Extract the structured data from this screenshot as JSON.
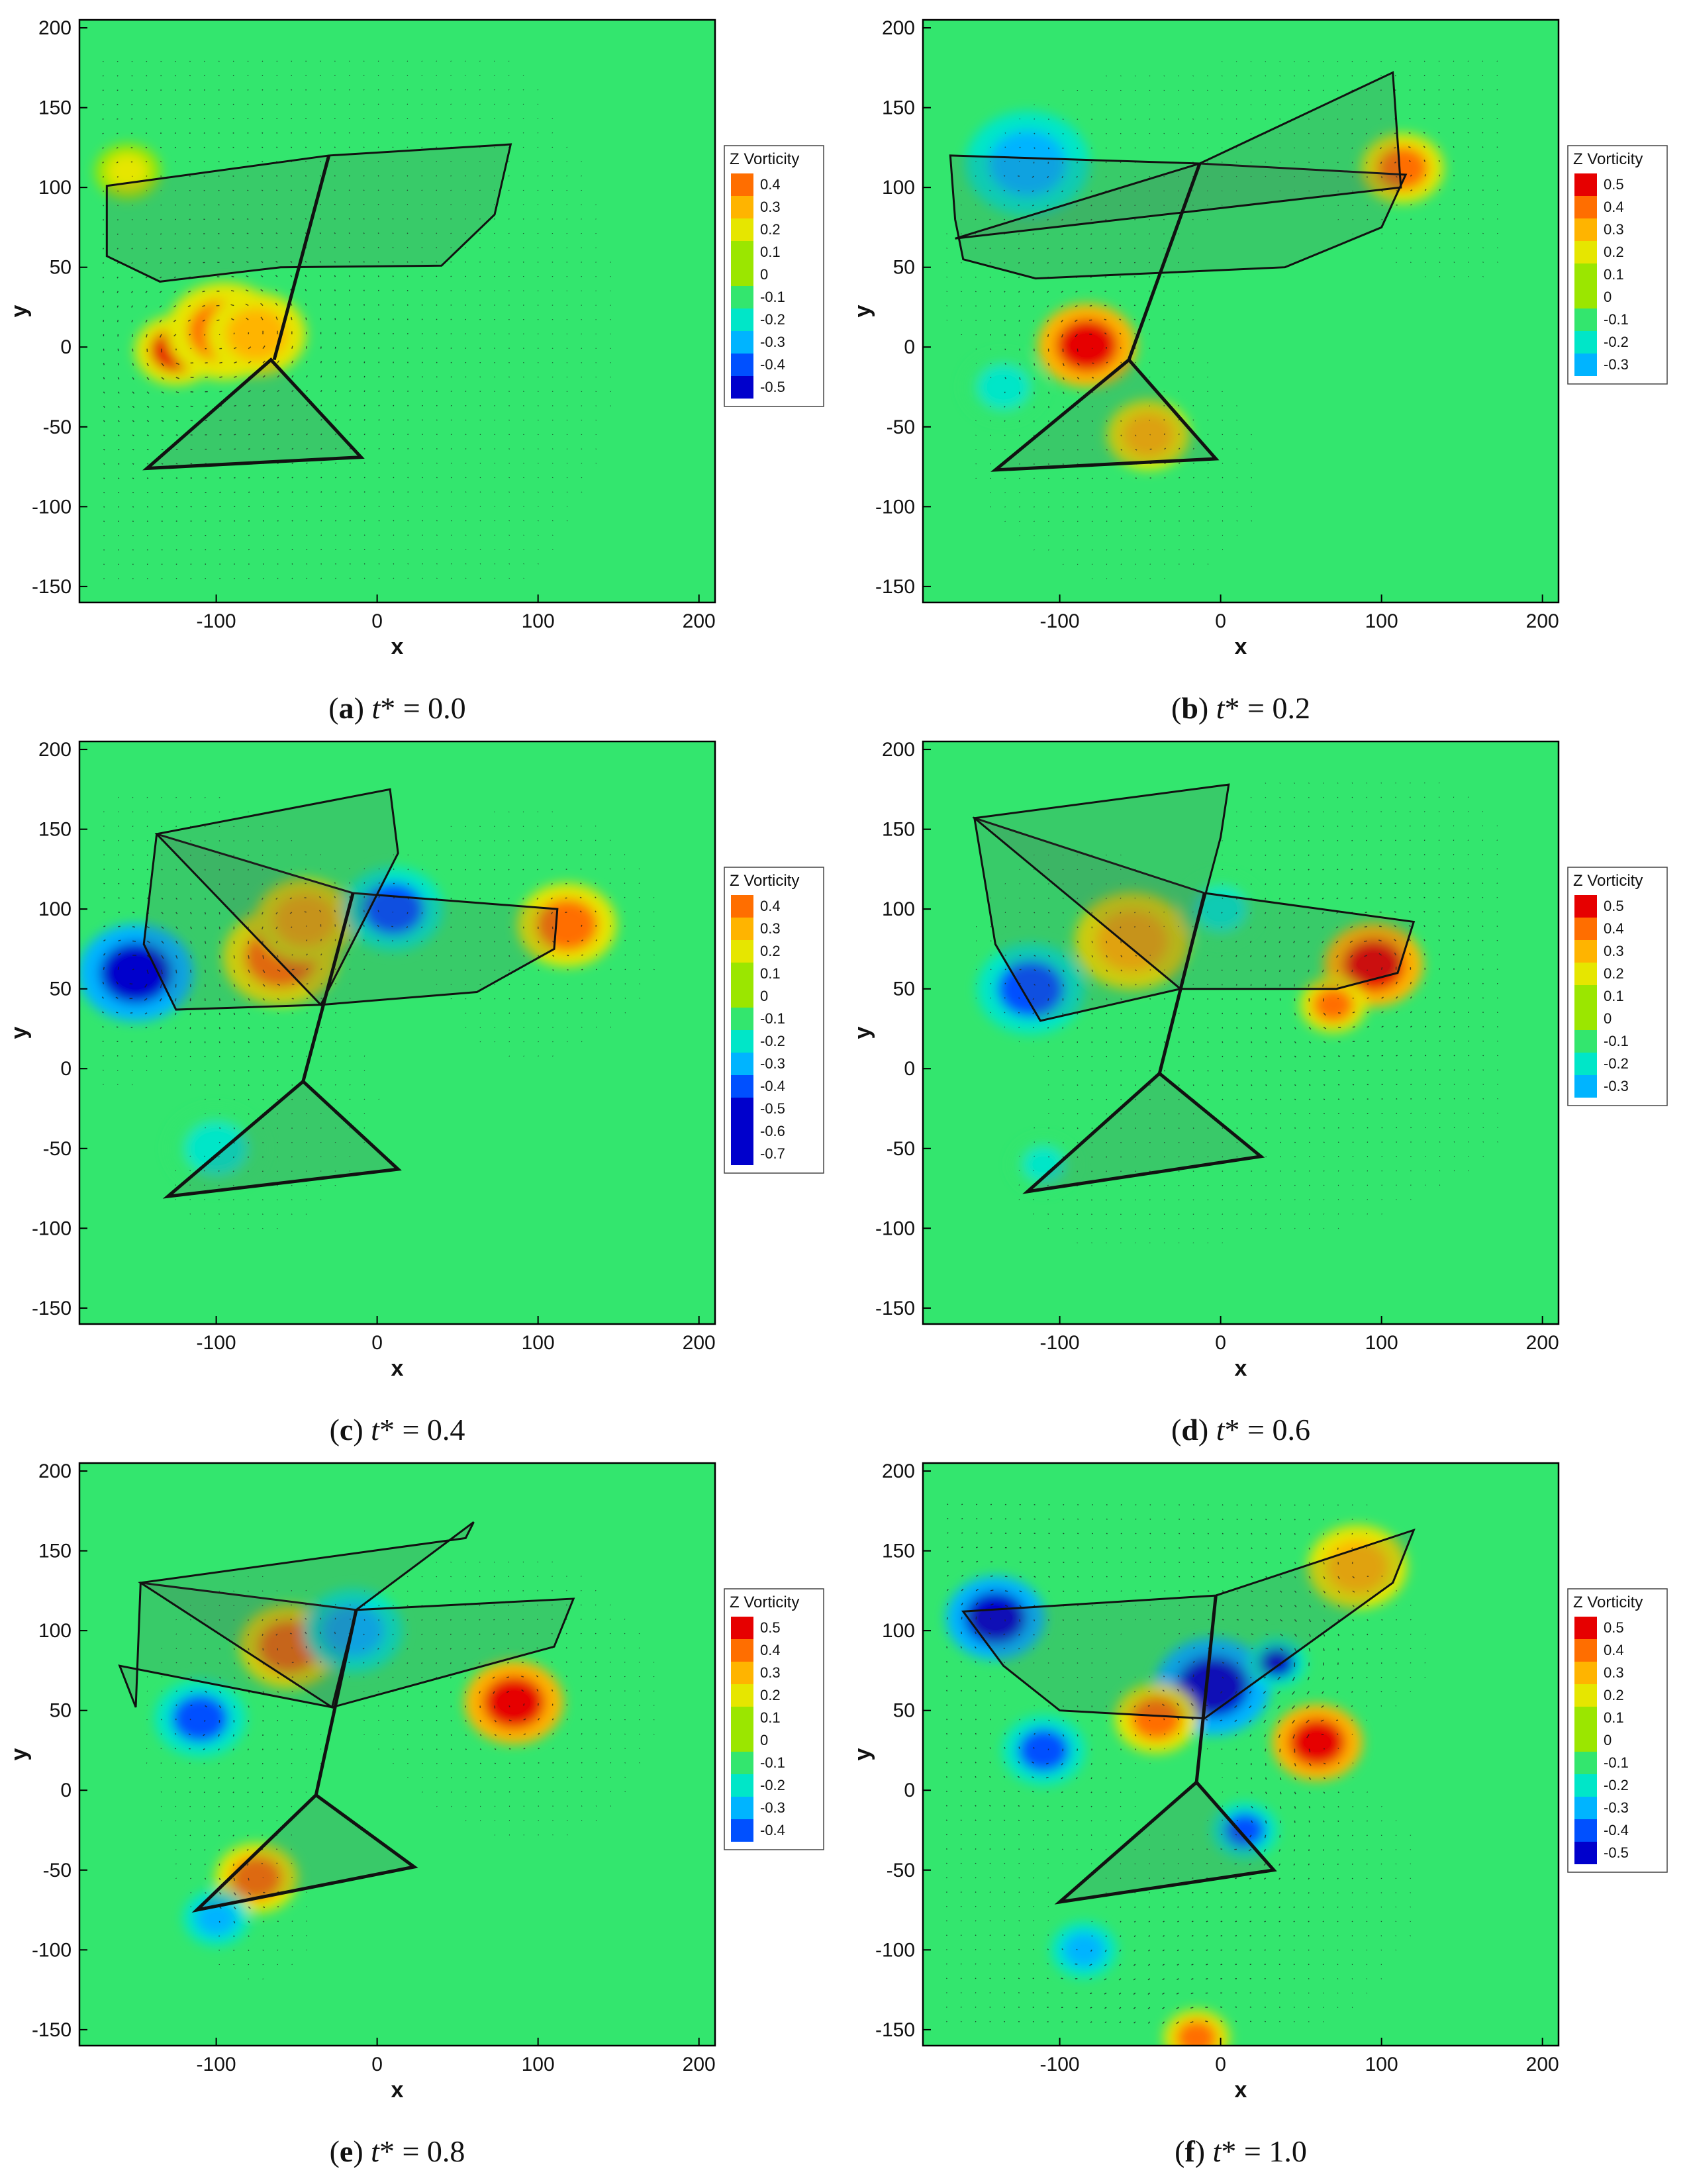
{
  "figure": {
    "colorbar_colors": [
      "#0000cc",
      "#0050ff",
      "#00b4ff",
      "#00e6c8",
      "#33e66e",
      "#9be600",
      "#e6e600",
      "#ffb400",
      "#ff6e00",
      "#e60000"
    ],
    "background_color": "#33e66e"
  },
  "chart_data": [
    {
      "panel": "a",
      "caption_letter": "a",
      "caption_rest": " = 0.0",
      "type": "heatmap",
      "xlabel": "x",
      "ylabel": "y",
      "xlim": [
        -185,
        210
      ],
      "ylim": [
        -160,
        205
      ],
      "xticks": [
        "-100",
        "0",
        "100",
        "200"
      ],
      "yticks": [
        "-150",
        "-100",
        "-50",
        "0",
        "50",
        "100",
        "150",
        "200"
      ],
      "legend_title": "Z Vorticity",
      "legend_levels": [
        "0.4",
        "0.3",
        "0.2",
        "0.1",
        "0",
        "-0.1",
        "-0.2",
        "-0.3",
        "-0.4",
        "-0.5"
      ],
      "wing_polygons": [
        [
          [
            -168,
            101
          ],
          [
            -30,
            120
          ],
          [
            83,
            127
          ],
          [
            73,
            83
          ],
          [
            40,
            51
          ],
          [
            -60,
            50
          ],
          [
            -135,
            41
          ],
          [
            -168,
            57
          ]
        ]
      ],
      "tail_polygon": [
        [
          -66,
          -8
        ],
        [
          -143,
          -76
        ],
        [
          -10,
          -69
        ]
      ],
      "body_line": [
        [
          -30,
          120
        ],
        [
          -64,
          -8
        ]
      ],
      "vortices": [
        {
          "x": -125,
          "y": -2,
          "s": 0.45,
          "r": 10
        },
        {
          "x": -95,
          "y": 10,
          "s": 0.38,
          "r": 14
        },
        {
          "x": -75,
          "y": 8,
          "s": 0.28,
          "r": 12
        },
        {
          "x": -155,
          "y": 110,
          "s": 0.15,
          "r": 8
        }
      ]
    },
    {
      "panel": "b",
      "caption_letter": "b",
      "caption_rest": " = 0.2",
      "type": "heatmap",
      "xlabel": "x",
      "ylabel": "y",
      "xlim": [
        -185,
        210
      ],
      "ylim": [
        -160,
        205
      ],
      "xticks": [
        "-100",
        "0",
        "100",
        "200"
      ],
      "yticks": [
        "-150",
        "-100",
        "-50",
        "0",
        "50",
        "100",
        "150",
        "200"
      ],
      "legend_title": "Z Vorticity",
      "legend_levels": [
        "0.5",
        "0.4",
        "0.3",
        "0.2",
        "0.1",
        "0",
        "-0.1",
        "-0.2",
        "-0.3"
      ],
      "wing_polygons": [
        [
          [
            -168,
            120
          ],
          [
            -13,
            115
          ],
          [
            115,
            108
          ],
          [
            100,
            75
          ],
          [
            40,
            50
          ],
          [
            -115,
            43
          ],
          [
            -160,
            55
          ],
          [
            -165,
            80
          ]
        ],
        [
          [
            -165,
            68
          ],
          [
            -13,
            115
          ],
          [
            107,
            172
          ],
          [
            112,
            100
          ]
        ]
      ],
      "tail_polygon": [
        [
          -57,
          -8
        ],
        [
          -140,
          -77
        ],
        [
          -3,
          -70
        ]
      ],
      "body_line": [
        [
          -13,
          115
        ],
        [
          -57,
          -8
        ]
      ],
      "vortices": [
        {
          "x": -83,
          "y": 1,
          "s": 0.5,
          "r": 12
        },
        {
          "x": 113,
          "y": 112,
          "s": 0.4,
          "r": 10
        },
        {
          "x": -120,
          "y": 115,
          "s": -0.3,
          "r": 15
        },
        {
          "x": -135,
          "y": -25,
          "s": -0.2,
          "r": 10
        },
        {
          "x": -45,
          "y": -55,
          "s": 0.25,
          "r": 10
        }
      ]
    },
    {
      "panel": "c",
      "caption_letter": "c",
      "caption_rest": " = 0.4",
      "type": "heatmap",
      "xlabel": "x",
      "ylabel": "y",
      "xlim": [
        -185,
        210
      ],
      "ylim": [
        -160,
        205
      ],
      "xticks": [
        "-100",
        "0",
        "100",
        "200"
      ],
      "yticks": [
        "-150",
        "-100",
        "-50",
        "0",
        "50",
        "100",
        "150",
        "200"
      ],
      "legend_title": "Z Vorticity",
      "legend_levels": [
        "0.4",
        "0.3",
        "0.2",
        "0.1",
        "0",
        "-0.1",
        "-0.2",
        "-0.3",
        "-0.4",
        "-0.5",
        "-0.6",
        "-0.7"
      ],
      "wing_polygons": [
        [
          [
            -137,
            147
          ],
          [
            -15,
            110
          ],
          [
            112,
            100
          ],
          [
            110,
            75
          ],
          [
            62,
            48
          ],
          [
            -35,
            40
          ],
          [
            -125,
            37
          ],
          [
            -145,
            78
          ]
        ],
        [
          [
            -137,
            147
          ],
          [
            -35,
            40
          ],
          [
            13,
            135
          ],
          [
            8,
            175
          ]
        ]
      ],
      "tail_polygon": [
        [
          -46,
          -8
        ],
        [
          -130,
          -80
        ],
        [
          13,
          -63
        ]
      ],
      "body_line": [
        [
          -15,
          110
        ],
        [
          -46,
          -8
        ]
      ],
      "vortices": [
        {
          "x": -150,
          "y": 60,
          "s": -0.7,
          "r": 14
        },
        {
          "x": -60,
          "y": 70,
          "s": 0.4,
          "r": 14
        },
        {
          "x": -45,
          "y": 93,
          "s": 0.3,
          "r": 12
        },
        {
          "x": 118,
          "y": 90,
          "s": 0.4,
          "r": 12
        },
        {
          "x": 10,
          "y": 100,
          "s": -0.35,
          "r": 12
        },
        {
          "x": -100,
          "y": -50,
          "s": -0.2,
          "r": 12
        }
      ]
    },
    {
      "panel": "d",
      "caption_letter": "d",
      "caption_rest": " = 0.6",
      "type": "heatmap",
      "xlabel": "x",
      "ylabel": "y",
      "xlim": [
        -185,
        210
      ],
      "ylim": [
        -160,
        205
      ],
      "xticks": [
        "-100",
        "0",
        "100",
        "200"
      ],
      "yticks": [
        "-150",
        "-100",
        "-50",
        "0",
        "50",
        "100",
        "150",
        "200"
      ],
      "legend_title": "Z Vorticity",
      "legend_levels": [
        "0.5",
        "0.4",
        "0.3",
        "0.2",
        "0.1",
        "0",
        "-0.1",
        "-0.2",
        "-0.3"
      ],
      "wing_polygons": [
        [
          [
            -153,
            157
          ],
          [
            -10,
            110
          ],
          [
            120,
            92
          ],
          [
            110,
            60
          ],
          [
            72,
            50
          ],
          [
            -25,
            50
          ],
          [
            -112,
            30
          ],
          [
            -140,
            78
          ]
        ],
        [
          [
            -153,
            157
          ],
          [
            -25,
            50
          ],
          [
            0,
            145
          ],
          [
            5,
            178
          ]
        ]
      ],
      "tail_polygon": [
        [
          -38,
          -3
        ],
        [
          -120,
          -77
        ],
        [
          25,
          -55
        ]
      ],
      "body_line": [
        [
          -10,
          110
        ],
        [
          -38,
          -3
        ]
      ],
      "vortices": [
        {
          "x": -118,
          "y": 50,
          "s": -0.35,
          "r": 13
        },
        {
          "x": 95,
          "y": 65,
          "s": 0.5,
          "r": 12
        },
        {
          "x": 70,
          "y": 40,
          "s": 0.35,
          "r": 8
        },
        {
          "x": -55,
          "y": 80,
          "s": 0.25,
          "r": 14
        },
        {
          "x": 0,
          "y": 100,
          "s": -0.2,
          "r": 10
        },
        {
          "x": -110,
          "y": -60,
          "s": -0.2,
          "r": 8
        }
      ]
    },
    {
      "panel": "e",
      "caption_letter": "e",
      "caption_rest": " = 0.8",
      "type": "heatmap",
      "xlabel": "x",
      "ylabel": "y",
      "xlim": [
        -185,
        210
      ],
      "ylim": [
        -160,
        205
      ],
      "xticks": [
        "-100",
        "0",
        "100",
        "200"
      ],
      "yticks": [
        "-150",
        "-100",
        "-50",
        "0",
        "50",
        "100",
        "150",
        "200"
      ],
      "legend_title": "Z Vorticity",
      "legend_levels": [
        "0.5",
        "0.4",
        "0.3",
        "0.2",
        "0.1",
        "0",
        "-0.1",
        "-0.2",
        "-0.3",
        "-0.4"
      ],
      "wing_polygons": [
        [
          [
            -147,
            130
          ],
          [
            -13,
            113
          ],
          [
            122,
            120
          ],
          [
            110,
            90
          ],
          [
            -28,
            52
          ],
          [
            -160,
            78
          ],
          [
            -150,
            52
          ]
        ],
        [
          [
            -147,
            130
          ],
          [
            -28,
            52
          ],
          [
            -13,
            113
          ],
          [
            60,
            168
          ],
          [
            55,
            158
          ]
        ]
      ],
      "tail_polygon": [
        [
          -38,
          -3
        ],
        [
          -112,
          -75
        ],
        [
          23,
          -48
        ]
      ],
      "body_line": [
        [
          -13,
          113
        ],
        [
          -38,
          -3
        ]
      ],
      "vortices": [
        {
          "x": -110,
          "y": 45,
          "s": -0.4,
          "r": 11
        },
        {
          "x": 85,
          "y": 55,
          "s": 0.5,
          "r": 12
        },
        {
          "x": -55,
          "y": 90,
          "s": 0.4,
          "r": 12
        },
        {
          "x": -75,
          "y": -55,
          "s": 0.4,
          "r": 10
        },
        {
          "x": -15,
          "y": 100,
          "s": -0.3,
          "r": 12
        },
        {
          "x": -100,
          "y": -80,
          "s": -0.25,
          "r": 8
        }
      ]
    },
    {
      "panel": "f",
      "caption_letter": "f",
      "caption_rest": " = 1.0",
      "type": "heatmap",
      "xlabel": "x",
      "ylabel": "y",
      "xlim": [
        -185,
        210
      ],
      "ylim": [
        -160,
        205
      ],
      "xticks": [
        "-100",
        "0",
        "100",
        "200"
      ],
      "yticks": [
        "-150",
        "-100",
        "-50",
        "0",
        "50",
        "100",
        "150",
        "200"
      ],
      "legend_title": "Z Vorticity",
      "legend_levels": [
        "0.5",
        "0.4",
        "0.3",
        "0.2",
        "0.1",
        "0",
        "-0.1",
        "-0.2",
        "-0.3",
        "-0.4",
        "-0.5"
      ],
      "wing_polygons": [
        [
          [
            -160,
            112
          ],
          [
            -3,
            122
          ],
          [
            120,
            163
          ],
          [
            107,
            130
          ],
          [
            -10,
            45
          ],
          [
            -100,
            50
          ],
          [
            -135,
            78
          ]
        ]
      ],
      "tail_polygon": [
        [
          -15,
          5
        ],
        [
          -100,
          -70
        ],
        [
          33,
          -50
        ]
      ],
      "body_line": [
        [
          -3,
          122
        ],
        [
          -15,
          5
        ]
      ],
      "vortices": [
        {
          "x": -140,
          "y": 108,
          "s": -0.5,
          "r": 12
        },
        {
          "x": -5,
          "y": 65,
          "s": -0.5,
          "r": 14
        },
        {
          "x": 60,
          "y": 30,
          "s": 0.5,
          "r": 11
        },
        {
          "x": 85,
          "y": 140,
          "s": 0.3,
          "r": 12
        },
        {
          "x": -110,
          "y": 25,
          "s": -0.4,
          "r": 10
        },
        {
          "x": -40,
          "y": 45,
          "s": 0.35,
          "r": 10
        },
        {
          "x": 35,
          "y": 80,
          "s": -0.45,
          "r": 7
        },
        {
          "x": 15,
          "y": -25,
          "s": -0.4,
          "r": 8
        },
        {
          "x": -85,
          "y": -100,
          "s": -0.3,
          "r": 8
        },
        {
          "x": -15,
          "y": -155,
          "s": 0.4,
          "r": 8
        }
      ]
    }
  ]
}
